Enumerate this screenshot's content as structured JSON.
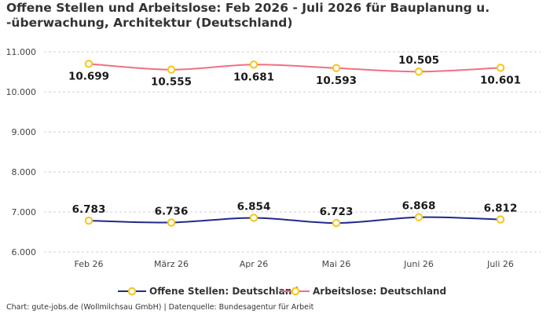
{
  "title": "Offene Stellen und Arbeitslose: Feb 2026 - Juli 2026 für Bauplanung u. -überwachung, Architektur (Deutschland)",
  "credit": "Chart: gute-jobs.de (Wollmilchsau GmbH) | Datenquelle: Bundesagentur für Arbeit",
  "chart_data": {
    "type": "line",
    "title": "Offene Stellen und Arbeitslose: Feb 2026 - Juli 2026 für Bauplanung u. -überwachung, Architektur (Deutschland)",
    "xlabel": "",
    "ylabel": "",
    "categories": [
      "Feb 26",
      "März 26",
      "Apr 26",
      "Mai 26",
      "Juni 26",
      "Juli 26"
    ],
    "y_ticks": [
      "6.000",
      "7.000",
      "8.000",
      "9.000",
      "10.000",
      "11.000"
    ],
    "ylim": [
      6000,
      11000
    ],
    "grid": true,
    "legend_position": "bottom",
    "series": [
      {
        "name": "Offene Stellen: Deutschland",
        "color": "#1f2a8a",
        "values": [
          6783,
          6736,
          6854,
          6723,
          6868,
          6812
        ],
        "labels": [
          "6.783",
          "6.736",
          "6.854",
          "6.723",
          "6.868",
          "6.812"
        ]
      },
      {
        "name": "Arbeitslose: Deutschland",
        "color": "#f07080",
        "values": [
          10699,
          10555,
          10681,
          10593,
          10505,
          10601
        ],
        "labels": [
          "10.699",
          "10.555",
          "10.681",
          "10.593",
          "10.505",
          "10.601"
        ]
      }
    ],
    "marker_color": "#f5c518"
  }
}
